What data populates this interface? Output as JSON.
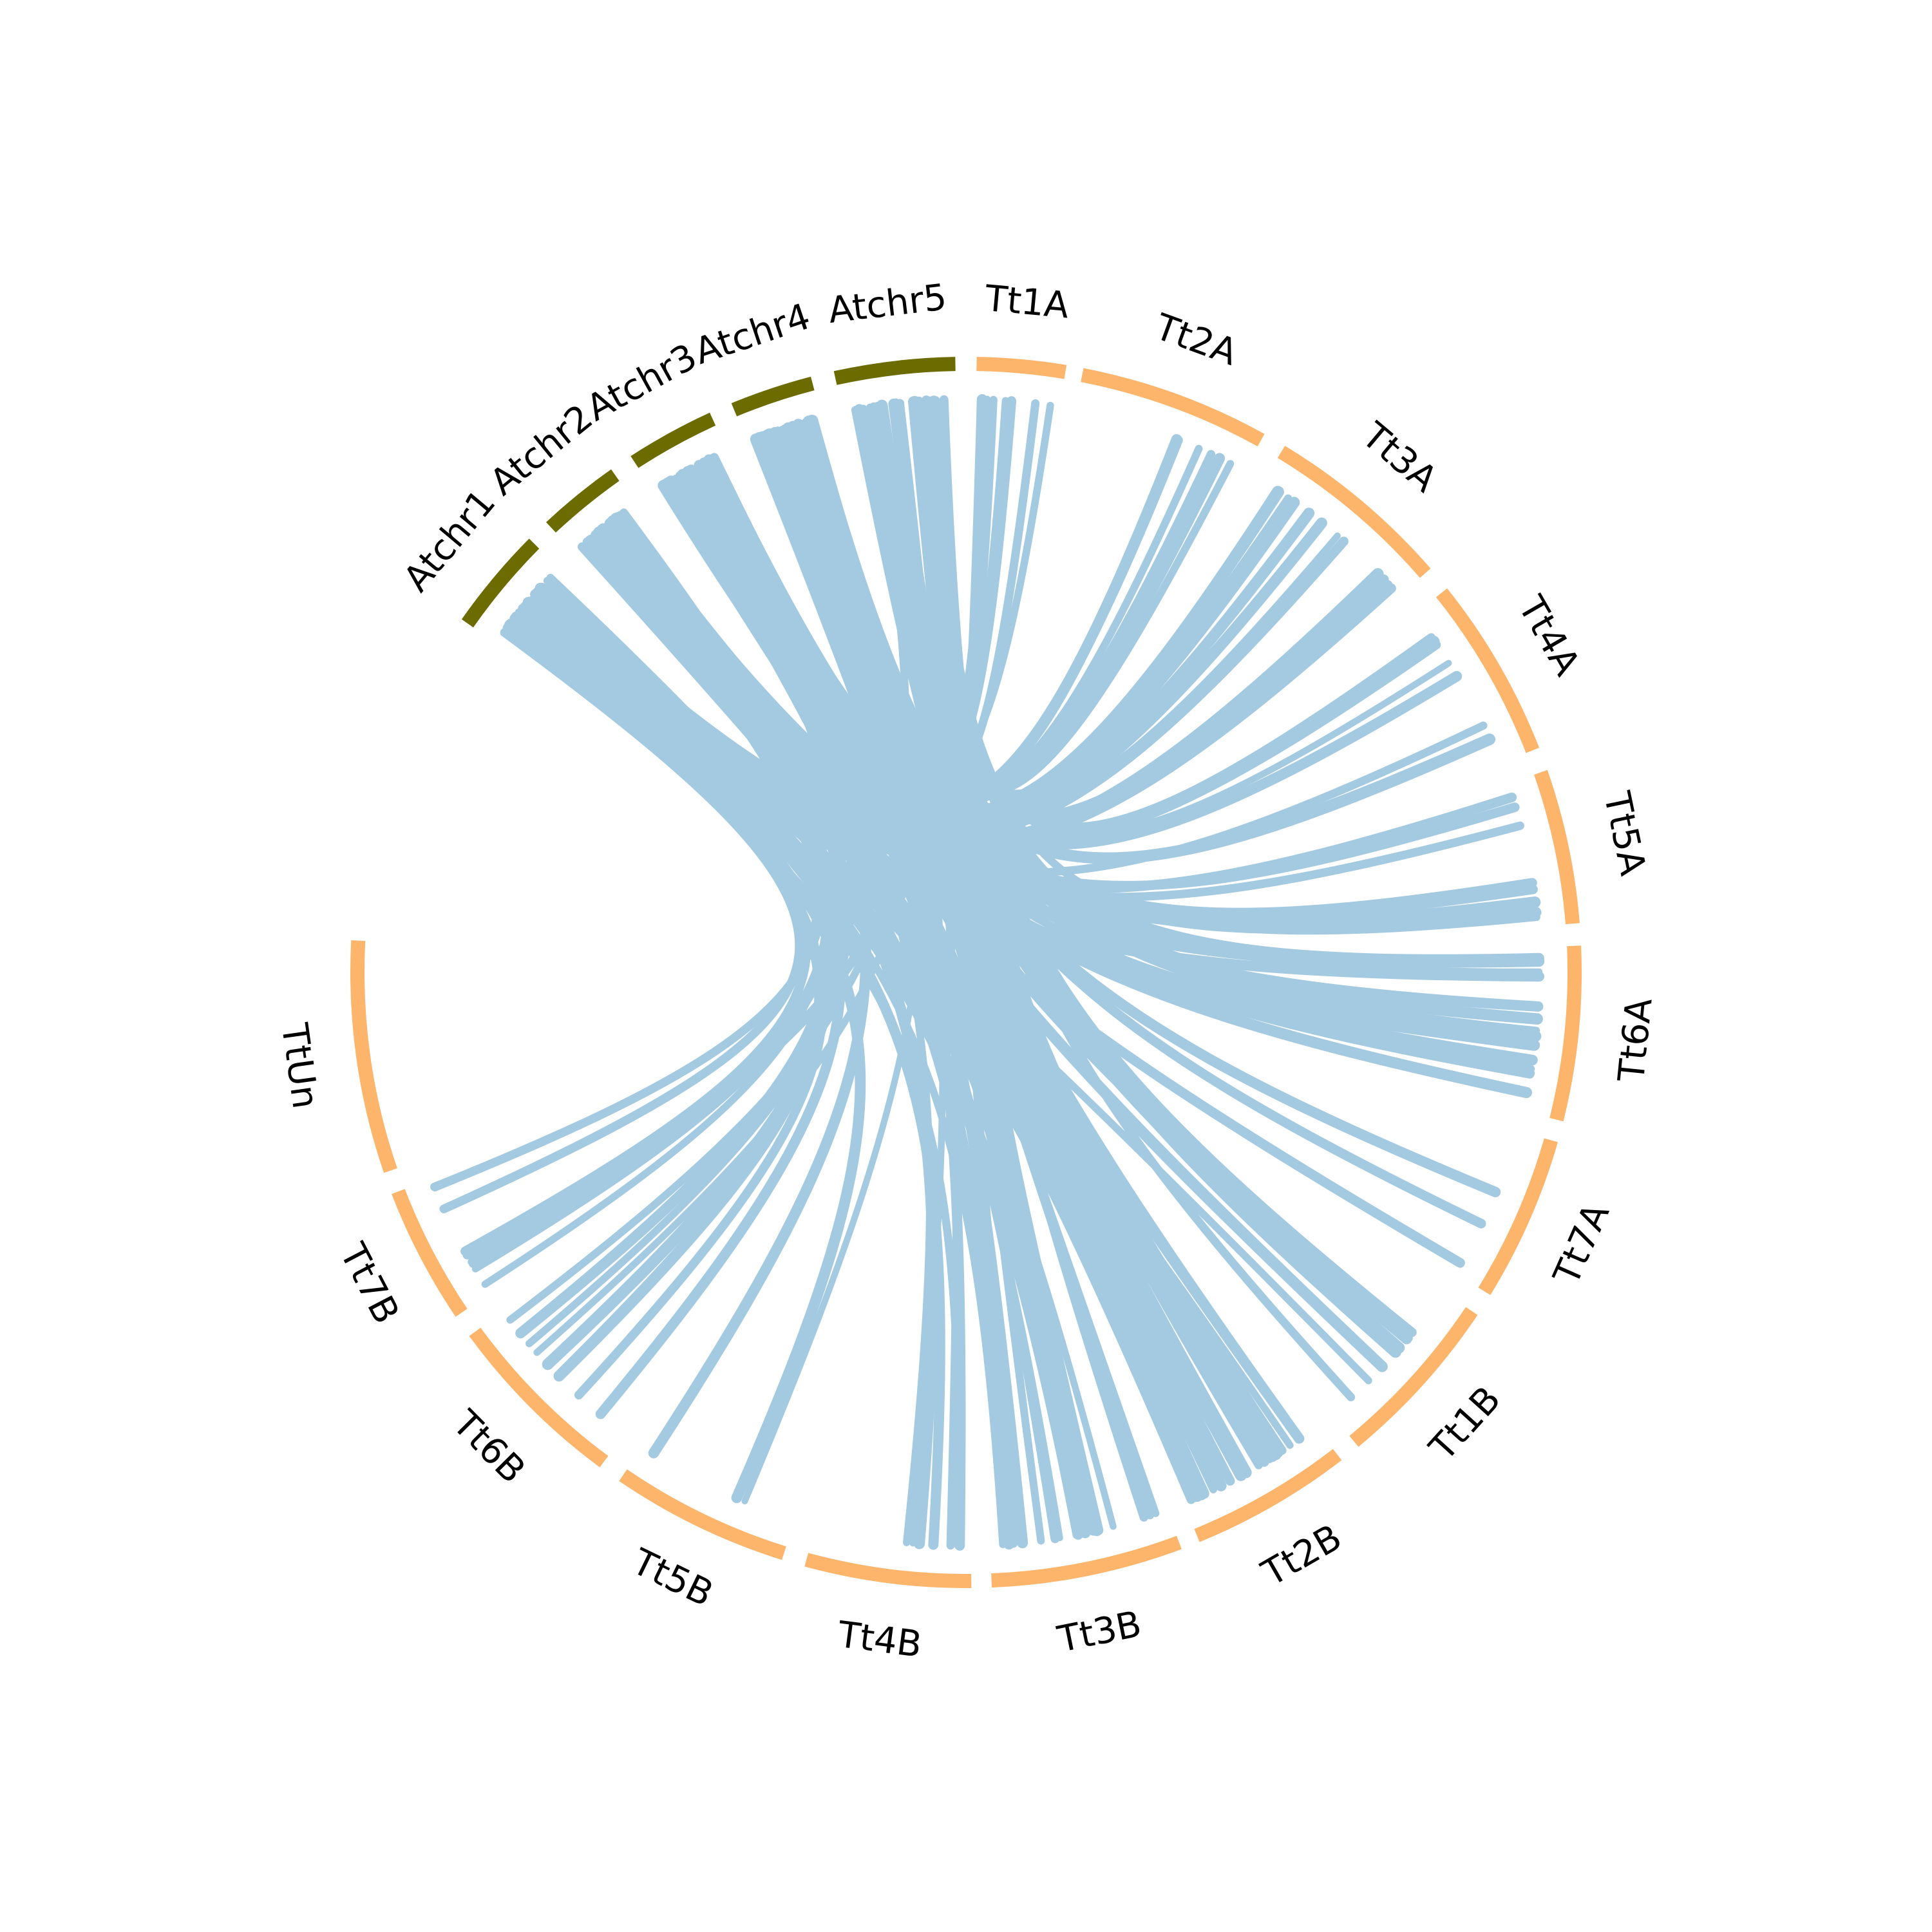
{
  "colors": {
    "arabidopsis": "#6b6b00",
    "wheat": "#fdb46b",
    "link": "#a3cae1",
    "background": "#ffffff"
  },
  "segments": [
    {
      "label": "Atchr1",
      "group": "arabidopsis"
    },
    {
      "label": "Atchr2",
      "group": "arabidopsis"
    },
    {
      "label": "Atchr3",
      "group": "arabidopsis"
    },
    {
      "label": "Atchr4",
      "group": "arabidopsis"
    },
    {
      "label": "Atchr5",
      "group": "arabidopsis"
    },
    {
      "label": "Tt1A",
      "group": "wheat"
    },
    {
      "label": "Tt2A",
      "group": "wheat"
    },
    {
      "label": "Tt3A",
      "group": "wheat"
    },
    {
      "label": "Tt4A",
      "group": "wheat"
    },
    {
      "label": "Tt5A",
      "group": "wheat"
    },
    {
      "label": "Tt6A",
      "group": "wheat"
    },
    {
      "label": "Tt7A",
      "group": "wheat"
    },
    {
      "label": "Tt1B",
      "group": "wheat"
    },
    {
      "label": "Tt2B",
      "group": "wheat"
    },
    {
      "label": "Tt3B",
      "group": "wheat"
    },
    {
      "label": "Tt4B",
      "group": "wheat"
    },
    {
      "label": "Tt5B",
      "group": "wheat"
    },
    {
      "label": "Tt6B",
      "group": "wheat"
    },
    {
      "label": "Tt7B",
      "group": "wheat"
    },
    {
      "label": "TtUn",
      "group": "wheat"
    }
  ]
}
